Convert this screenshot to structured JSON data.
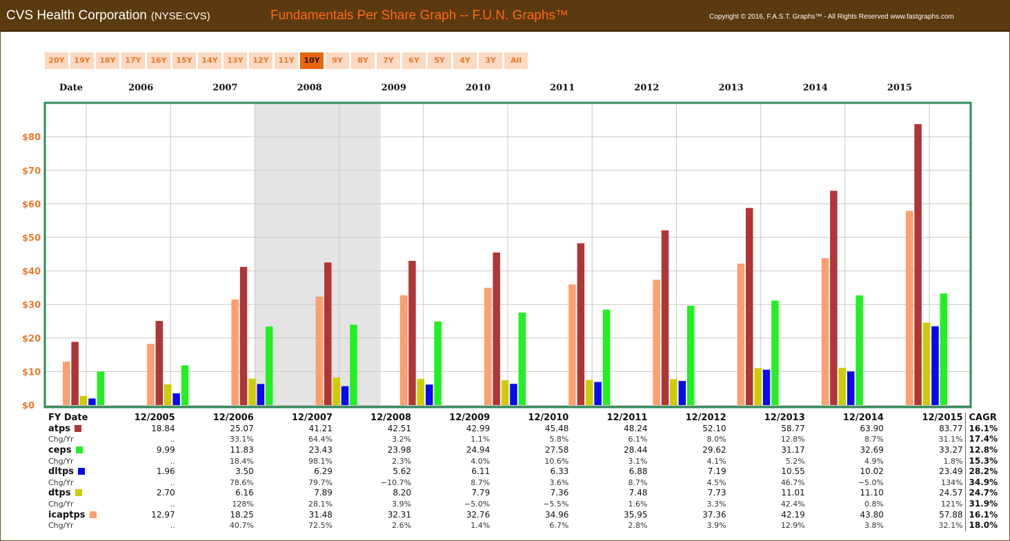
{
  "header": {
    "company": "CVS Health Corporation",
    "ticker": "(NYSE:CVS)",
    "title": "Fundamentals Per Share Graph -- F.U.N. Graphs™",
    "copyright": "Copyright © 2016, F.A.S.T. Graphs™ - All Rights Reserved www.fastgraphs.com"
  },
  "range_buttons": [
    "20Y",
    "19Y",
    "18Y",
    "17Y",
    "16Y",
    "15Y",
    "14Y",
    "13Y",
    "12Y",
    "11Y",
    "10Y",
    "9Y",
    "8Y",
    "7Y",
    "6Y",
    "5Y",
    "4Y",
    "3Y",
    "All"
  ],
  "active_range": "10Y",
  "colors": {
    "icaptps": "#ff9f6e",
    "atps": "#b03535",
    "dtps": "#cccc00",
    "dltps": "#0a0aee",
    "ceps": "#22f022",
    "plot_border": "#2e8b57",
    "recession": "#e4e4e4",
    "grid": "#c8c8c8",
    "axis_label": "#ee7a2a"
  },
  "chart_data": {
    "type": "bar",
    "title": "Fundamentals Per Share Graph -- F.U.N. Graphs™",
    "date_label": "Date",
    "year_labels": [
      "2006",
      "2007",
      "2008",
      "2009",
      "2010",
      "2011",
      "2012",
      "2013",
      "2014",
      "2015"
    ],
    "categories": [
      "12/2005",
      "12/2006",
      "12/2007",
      "12/2008",
      "12/2009",
      "12/2010",
      "12/2011",
      "12/2012",
      "12/2013",
      "12/2014",
      "12/2015"
    ],
    "ylim": [
      0,
      90
    ],
    "yticks": [
      0,
      10,
      20,
      30,
      40,
      50,
      60,
      70,
      80
    ],
    "ytick_labels": [
      "$0",
      "$10",
      "$20",
      "$30",
      "$40",
      "$50",
      "$60",
      "$70",
      "$80"
    ],
    "recession_shading": [
      "12/2007",
      "mid-2009"
    ],
    "series": [
      {
        "key": "icaptps",
        "name": "icaptps",
        "values": [
          12.97,
          18.25,
          31.48,
          32.31,
          32.76,
          34.96,
          35.95,
          37.36,
          42.19,
          43.8,
          57.88
        ]
      },
      {
        "key": "atps",
        "name": "atps",
        "values": [
          18.84,
          25.07,
          41.21,
          42.51,
          42.99,
          45.48,
          48.24,
          52.1,
          58.77,
          63.9,
          83.77
        ]
      },
      {
        "key": "dtps",
        "name": "dtps",
        "values": [
          2.7,
          6.16,
          7.89,
          8.2,
          7.79,
          7.36,
          7.48,
          7.73,
          11.01,
          11.1,
          24.57
        ]
      },
      {
        "key": "dltps",
        "name": "dltps",
        "values": [
          1.96,
          3.5,
          6.29,
          5.62,
          6.11,
          6.33,
          6.88,
          7.19,
          10.55,
          10.02,
          23.49
        ]
      },
      {
        "key": "ceps",
        "name": "ceps",
        "values": [
          9.99,
          11.83,
          23.43,
          23.98,
          24.94,
          27.58,
          28.44,
          29.62,
          31.17,
          32.69,
          33.27
        ]
      }
    ]
  },
  "table": {
    "fy_label": "FY Date",
    "cagr_label": "CAGR",
    "dates": [
      "12/2005",
      "12/2006",
      "12/2007",
      "12/2008",
      "12/2009",
      "12/2010",
      "12/2011",
      "12/2012",
      "12/2013",
      "12/2014",
      "12/2015"
    ],
    "rows": [
      {
        "label": "atps",
        "color_key": "atps",
        "kind": "metric",
        "values": [
          "18.84",
          "25.07",
          "41.21",
          "42.51",
          "42.99",
          "45.48",
          "48.24",
          "52.10",
          "58.77",
          "63.90",
          "83.77"
        ],
        "cagr": "16.1%"
      },
      {
        "label": "Chg/Yr",
        "kind": "chg",
        "values": [
          "..",
          "33.1%",
          "64.4%",
          "3.2%",
          "1.1%",
          "5.8%",
          "6.1%",
          "8.0%",
          "12.8%",
          "8.7%",
          "31.1%"
        ],
        "cagr": "17.4%"
      },
      {
        "label": "ceps",
        "color_key": "ceps",
        "kind": "metric",
        "values": [
          "9.99",
          "11.83",
          "23.43",
          "23.98",
          "24.94",
          "27.58",
          "28.44",
          "29.62",
          "31.17",
          "32.69",
          "33.27"
        ],
        "cagr": "12.8%"
      },
      {
        "label": "Chg/Yr",
        "kind": "chg",
        "values": [
          "..",
          "18.4%",
          "98.1%",
          "2.3%",
          "4.0%",
          "10.6%",
          "3.1%",
          "4.1%",
          "5.2%",
          "4.9%",
          "1.8%"
        ],
        "cagr": "15.3%"
      },
      {
        "label": "dltps",
        "color_key": "dltps",
        "kind": "metric",
        "values": [
          "1.96",
          "3.50",
          "6.29",
          "5.62",
          "6.11",
          "6.33",
          "6.88",
          "7.19",
          "10.55",
          "10.02",
          "23.49"
        ],
        "cagr": "28.2%"
      },
      {
        "label": "Chg/Yr",
        "kind": "chg",
        "values": [
          "..",
          "78.6%",
          "79.7%",
          "−10.7%",
          "8.7%",
          "3.6%",
          "8.7%",
          "4.5%",
          "46.7%",
          "−5.0%",
          "134%"
        ],
        "cagr": "34.9%"
      },
      {
        "label": "dtps",
        "color_key": "dtps",
        "kind": "metric",
        "values": [
          "2.70",
          "6.16",
          "7.89",
          "8.20",
          "7.79",
          "7.36",
          "7.48",
          "7.73",
          "11.01",
          "11.10",
          "24.57"
        ],
        "cagr": "24.7%"
      },
      {
        "label": "Chg/Yr",
        "kind": "chg",
        "values": [
          "..",
          "128%",
          "28.1%",
          "3.9%",
          "−5.0%",
          "−5.5%",
          "1.6%",
          "3.3%",
          "42.4%",
          "0.8%",
          "121%"
        ],
        "cagr": "31.9%"
      },
      {
        "label": "icaptps",
        "color_key": "icaptps",
        "kind": "metric",
        "values": [
          "12.97",
          "18.25",
          "31.48",
          "32.31",
          "32.76",
          "34.96",
          "35.95",
          "37.36",
          "42.19",
          "43.80",
          "57.88"
        ],
        "cagr": "16.1%"
      },
      {
        "label": "Chg/Yr",
        "kind": "chg",
        "values": [
          "..",
          "40.7%",
          "72.5%",
          "2.6%",
          "1.4%",
          "6.7%",
          "2.8%",
          "3.9%",
          "12.9%",
          "3.8%",
          "32.1%"
        ],
        "cagr": "18.0%"
      }
    ]
  }
}
